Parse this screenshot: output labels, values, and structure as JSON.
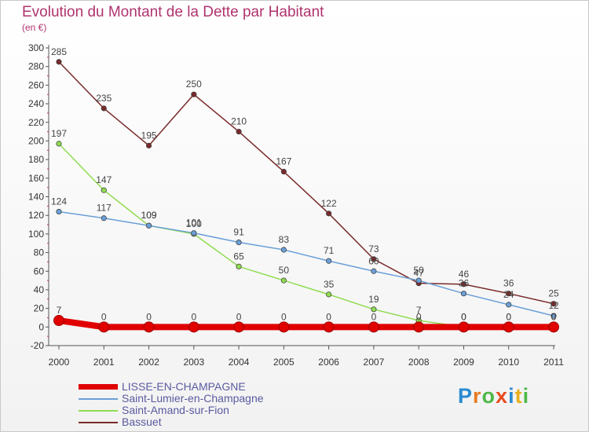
{
  "header": {
    "title": "Evolution du Montant de la Dette par Habitant",
    "subtitle": "(en €)"
  },
  "brand": {
    "letters": [
      "P",
      "r",
      "o",
      "x",
      "i",
      "t",
      "i"
    ],
    "colors": [
      "#2a8ad0",
      "#e87a1e",
      "#4cb848",
      "#e84d1e",
      "#2a8ad0",
      "#e8b01e",
      "#4cb848"
    ]
  },
  "chart_data": {
    "type": "line",
    "title": "Evolution du Montant de la Dette par Habitant",
    "ylabel": "(en €)",
    "xlabel": "",
    "x": [
      "2000",
      "2001",
      "2002",
      "2003",
      "2004",
      "2005",
      "2006",
      "2007",
      "2008",
      "2009",
      "2010",
      "2011"
    ],
    "ylim": [
      -20,
      300
    ],
    "yticks": [
      -20,
      0,
      20,
      40,
      60,
      80,
      100,
      120,
      140,
      160,
      180,
      200,
      220,
      240,
      260,
      280,
      300
    ],
    "grid": false,
    "legend_position": "bottom-left",
    "series": [
      {
        "name": "LISSE-EN-CHAMPAGNE",
        "color": "#e00000",
        "values": [
          7,
          0,
          0,
          0,
          0,
          0,
          0,
          0,
          0,
          0,
          0,
          0
        ],
        "labels": [
          "7",
          "0",
          "0",
          "0",
          "0",
          "0",
          "0",
          "0",
          "0",
          "0",
          "0",
          "0"
        ]
      },
      {
        "name": "Saint-Lumier-en-Champagne",
        "color": "#6aa0d8",
        "values": [
          124,
          117,
          109,
          101,
          91,
          83,
          71,
          60,
          50,
          36,
          24,
          12
        ],
        "labels": [
          "124",
          "117",
          "109",
          "101",
          "91",
          "83",
          "71",
          "60",
          "50",
          "36",
          "24",
          "12"
        ]
      },
      {
        "name": "Saint-Amand-sur-Fion",
        "color": "#90dc50",
        "values": [
          197,
          147,
          109,
          100,
          65,
          50,
          35,
          19,
          7,
          0,
          0,
          0
        ],
        "labels": [
          "197",
          "147",
          "109",
          "100",
          "65",
          "50",
          "35",
          "19",
          "7",
          "0",
          "0",
          "0"
        ]
      },
      {
        "name": "Bassuet",
        "color": "#7a2a2a",
        "values": [
          285,
          235,
          195,
          250,
          210,
          167,
          122,
          73,
          47,
          46,
          36,
          25
        ],
        "labels": [
          "285",
          "235",
          "195",
          "250",
          "210",
          "167",
          "122",
          "73",
          "47",
          "46",
          "36",
          "25"
        ]
      }
    ]
  }
}
